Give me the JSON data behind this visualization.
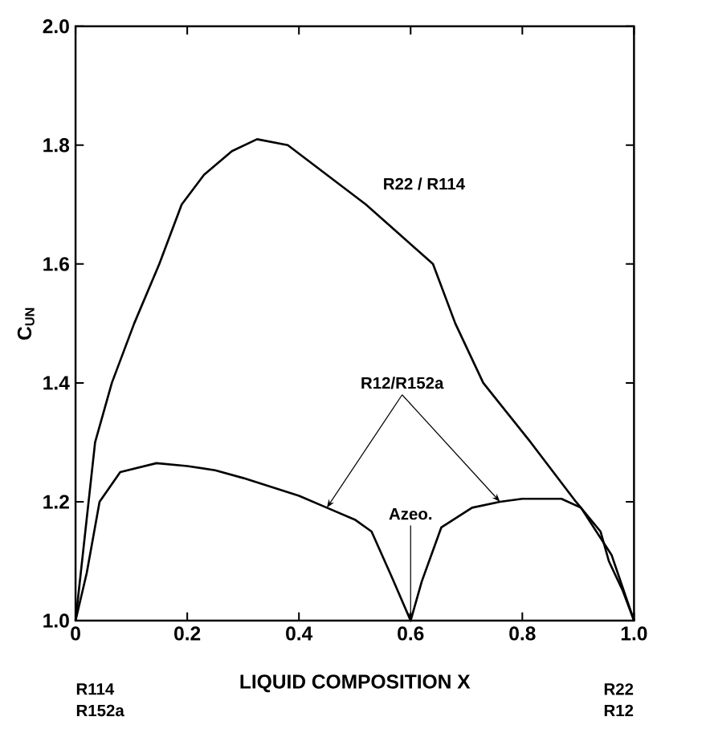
{
  "chart_data": {
    "type": "line",
    "xlabel": "LIQUID COMPOSITION X",
    "ylabel": "C$_{UN}$",
    "xlim": [
      0,
      1
    ],
    "ylim": [
      1,
      2
    ],
    "xticks": [
      0,
      0.2,
      0.4,
      0.6,
      0.8,
      {
        "value": 1,
        "label": "1.0"
      }
    ],
    "yticks": [
      {
        "value": 1,
        "label": "1.0"
      },
      1.2,
      1.4,
      1.6,
      1.8,
      {
        "value": 2,
        "label": "2.0"
      }
    ],
    "grid": false,
    "legend": false,
    "marker": "none",
    "line_style": "solid",
    "series": [
      {
        "name": "R22 / R114",
        "color": "#000000",
        "x": [
          0,
          0.035,
          0.065,
          0.105,
          0.15,
          0.19,
          0.23,
          0.28,
          0.325,
          0.38,
          0.45,
          0.52,
          0.58,
          0.64,
          0.68,
          0.73,
          0.815,
          0.896,
          0.94,
          0.955,
          0.98,
          1.0
        ],
        "values": [
          1.0,
          1.3,
          1.4,
          1.5,
          1.6,
          1.7,
          1.75,
          1.79,
          1.81,
          1.8,
          1.75,
          1.7,
          1.65,
          1.6,
          1.5,
          1.4,
          1.3,
          1.2,
          1.15,
          1.1,
          1.05,
          1.0
        ]
      },
      {
        "name": "R12/R152a",
        "color": "#000000",
        "x": [
          0,
          0.02,
          0.043,
          0.08,
          0.145,
          0.2,
          0.25,
          0.3,
          0.35,
          0.4,
          0.45,
          0.5,
          0.53,
          0.566,
          0.6,
          0.62,
          0.655,
          0.71,
          0.76,
          0.8,
          0.87,
          0.905,
          0.96,
          1.0
        ],
        "values": [
          1.0,
          1.08,
          1.2,
          1.25,
          1.265,
          1.26,
          1.253,
          1.24,
          1.225,
          1.21,
          1.19,
          1.17,
          1.15,
          1.074,
          1.0,
          1.066,
          1.157,
          1.19,
          1.2,
          1.205,
          1.205,
          1.19,
          1.11,
          1.0
        ]
      }
    ],
    "annotations": [
      {
        "text": "Azeo.",
        "x": 0.6,
        "y": 1.0
      },
      "R114",
      "R152a",
      "R22",
      "R12"
    ]
  }
}
